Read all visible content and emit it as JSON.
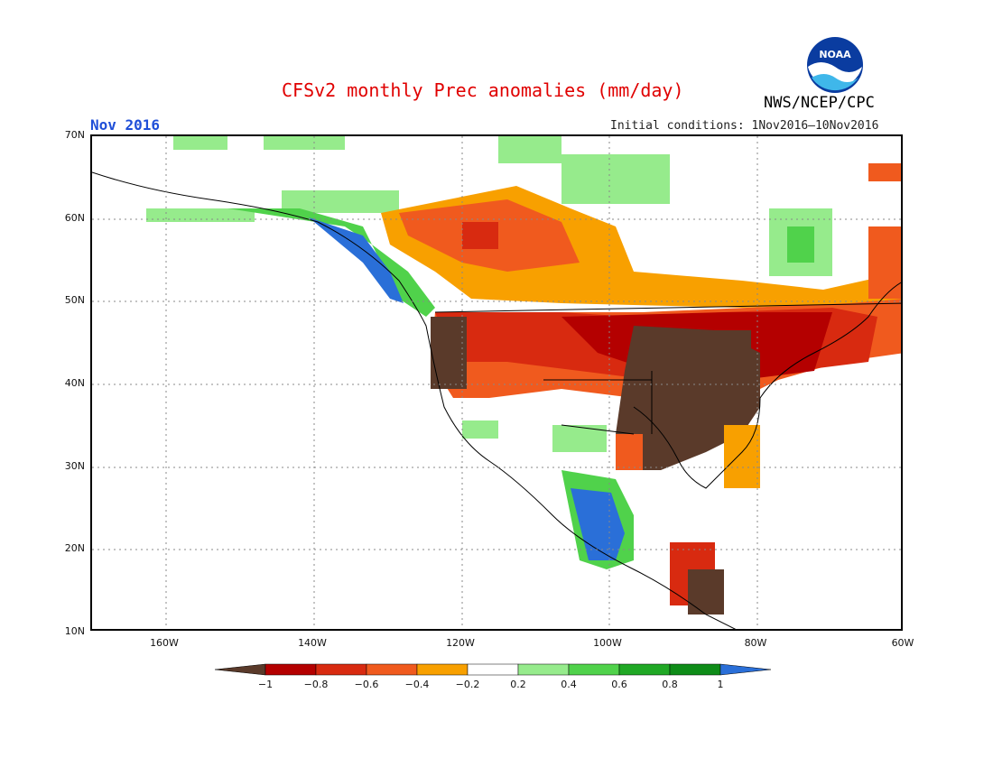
{
  "header": {
    "title": "CFSv2 monthly Prec anomalies (mm/day)",
    "period": "Nov 2016",
    "initial_conditions": "Initial conditions: 1Nov2016–10Nov2016",
    "agency": "NWS/NCEP/CPC",
    "logo_text": "NOAA"
  },
  "map": {
    "lat_labels": [
      "70N",
      "60N",
      "50N",
      "40N",
      "30N",
      "20N",
      "10N"
    ],
    "lon_labels": [
      "160W",
      "140W",
      "120W",
      "100W",
      "80W",
      "60W"
    ],
    "lat_range": [
      10,
      70
    ],
    "lon_range": [
      -170,
      -60
    ]
  },
  "legend": {
    "tick_labels": [
      "−1",
      "−0.8",
      "−0.6",
      "−0.4",
      "−0.2",
      "0.2",
      "0.4",
      "0.6",
      "0.8",
      "1"
    ],
    "colors": [
      "#5a3a2a",
      "#b40000",
      "#d82a10",
      "#f05a1e",
      "#f8a000",
      "#ffffff",
      "#96eb8c",
      "#50d24b",
      "#20a825",
      "#0e8c18",
      "#2a6fd8"
    ]
  }
}
